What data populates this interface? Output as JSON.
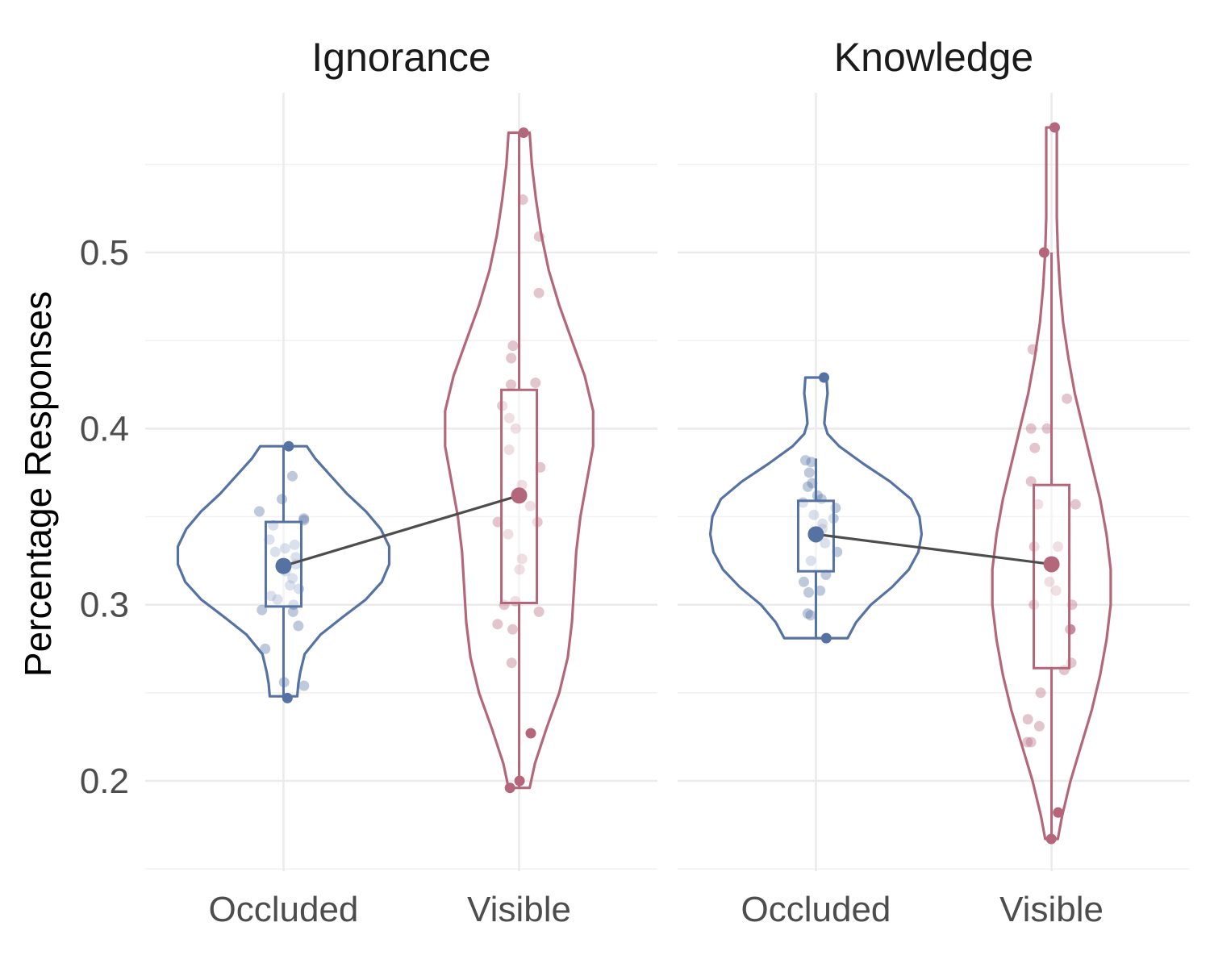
{
  "chart_data": {
    "type": "violin",
    "ylabel": "Percentage Responses",
    "xlabel": "",
    "ylim": [
      0.15,
      0.565
    ],
    "y_ticks": [
      0.2,
      0.3,
      0.4,
      0.5
    ],
    "y_tick_labels": [
      "0.2",
      "0.3",
      "0.4",
      "0.5"
    ],
    "grid": true,
    "colors": {
      "Occluded": "#5572a3",
      "Visible": "#b4677b",
      "mean_line": "#4d4d4d"
    },
    "categories": [
      "Occluded",
      "Visible"
    ],
    "facets": [
      {
        "title": "Ignorance",
        "groups": [
          {
            "category": "Occluded",
            "min": 0.248,
            "q1": 0.299,
            "median": 0.318,
            "q3": 0.347,
            "max": 0.39,
            "mean": 0.322,
            "outliers": [
              0.39,
              0.247
            ],
            "points": [
              0.353,
              0.349,
              0.345,
              0.337,
              0.334,
              0.332,
              0.33,
              0.327,
              0.323,
              0.319,
              0.315,
              0.311,
              0.309,
              0.305,
              0.303,
              0.3,
              0.296,
              0.297,
              0.373,
              0.36,
              0.348,
              0.288,
              0.275,
              0.256,
              0.254
            ],
            "density": [
              [
                0.248,
                0.13
              ],
              [
                0.255,
                0.14
              ],
              [
                0.262,
                0.16
              ],
              [
                0.272,
                0.2
              ],
              [
                0.283,
                0.35
              ],
              [
                0.293,
                0.56
              ],
              [
                0.303,
                0.78
              ],
              [
                0.313,
                0.93
              ],
              [
                0.323,
                1.0
              ],
              [
                0.333,
                1.0
              ],
              [
                0.343,
                0.92
              ],
              [
                0.353,
                0.78
              ],
              [
                0.363,
                0.6
              ],
              [
                0.373,
                0.45
              ],
              [
                0.383,
                0.3
              ],
              [
                0.39,
                0.22
              ]
            ]
          },
          {
            "category": "Visible",
            "min": 0.196,
            "q1": 0.301,
            "median": 0.36,
            "q3": 0.422,
            "max": 0.568,
            "mean": 0.362,
            "outliers": [
              0.568,
              0.227,
              0.2,
              0.196
            ],
            "points": [
              0.53,
              0.509,
              0.477,
              0.447,
              0.44,
              0.426,
              0.425,
              0.413,
              0.406,
              0.4,
              0.388,
              0.378,
              0.368,
              0.356,
              0.347,
              0.347,
              0.34,
              0.326,
              0.32,
              0.302,
              0.3,
              0.296,
              0.289,
              0.286,
              0.267
            ],
            "density": [
              [
                0.196,
                0.1
              ],
              [
                0.21,
                0.15
              ],
              [
                0.23,
                0.26
              ],
              [
                0.25,
                0.38
              ],
              [
                0.27,
                0.46
              ],
              [
                0.29,
                0.5
              ],
              [
                0.31,
                0.52
              ],
              [
                0.33,
                0.54
              ],
              [
                0.35,
                0.58
              ],
              [
                0.37,
                0.64
              ],
              [
                0.39,
                0.7
              ],
              [
                0.41,
                0.7
              ],
              [
                0.43,
                0.62
              ],
              [
                0.45,
                0.5
              ],
              [
                0.47,
                0.38
              ],
              [
                0.49,
                0.28
              ],
              [
                0.51,
                0.21
              ],
              [
                0.53,
                0.16
              ],
              [
                0.55,
                0.12
              ],
              [
                0.568,
                0.1
              ]
            ]
          }
        ]
      },
      {
        "title": "Knowledge",
        "groups": [
          {
            "category": "Occluded",
            "min": 0.281,
            "q1": 0.319,
            "median": 0.341,
            "q3": 0.359,
            "max": 0.383,
            "mean": 0.34,
            "outliers": [
              0.429,
              0.281
            ],
            "points": [
              0.381,
              0.382,
              0.375,
              0.369,
              0.367,
              0.362,
              0.36,
              0.358,
              0.355,
              0.351,
              0.349,
              0.346,
              0.343,
              0.341,
              0.338,
              0.335,
              0.33,
              0.325,
              0.317,
              0.313,
              0.308,
              0.307,
              0.295,
              0.294
            ],
            "density": [
              [
                0.281,
                0.3
              ],
              [
                0.29,
                0.38
              ],
              [
                0.3,
                0.52
              ],
              [
                0.31,
                0.72
              ],
              [
                0.32,
                0.88
              ],
              [
                0.33,
                0.97
              ],
              [
                0.34,
                1.0
              ],
              [
                0.35,
                0.98
              ],
              [
                0.36,
                0.9
              ],
              [
                0.37,
                0.7
              ],
              [
                0.38,
                0.45
              ],
              [
                0.39,
                0.22
              ],
              [
                0.397,
                0.11
              ],
              [
                0.403,
                0.08
              ],
              [
                0.41,
                0.09
              ],
              [
                0.42,
                0.11
              ],
              [
                0.429,
                0.1
              ]
            ]
          },
          {
            "category": "Visible",
            "min": 0.167,
            "q1": 0.264,
            "median": 0.3,
            "q3": 0.368,
            "max": 0.5,
            "mean": 0.323,
            "outliers": [
              0.571,
              0.5,
              0.182,
              0.167
            ],
            "points": [
              0.445,
              0.417,
              0.4,
              0.4,
              0.389,
              0.37,
              0.357,
              0.357,
              0.333,
              0.333,
              0.313,
              0.308,
              0.3,
              0.3,
              0.286,
              0.286,
              0.286,
              0.267,
              0.263,
              0.25,
              0.235,
              0.231,
              0.222,
              0.222
            ],
            "density": [
              [
                0.167,
                0.06
              ],
              [
                0.18,
                0.1
              ],
              [
                0.2,
                0.18
              ],
              [
                0.22,
                0.28
              ],
              [
                0.24,
                0.38
              ],
              [
                0.26,
                0.46
              ],
              [
                0.28,
                0.52
              ],
              [
                0.3,
                0.56
              ],
              [
                0.32,
                0.56
              ],
              [
                0.34,
                0.52
              ],
              [
                0.36,
                0.46
              ],
              [
                0.38,
                0.38
              ],
              [
                0.4,
                0.3
              ],
              [
                0.42,
                0.22
              ],
              [
                0.44,
                0.16
              ],
              [
                0.46,
                0.11
              ],
              [
                0.48,
                0.08
              ],
              [
                0.5,
                0.06
              ],
              [
                0.52,
                0.05
              ],
              [
                0.54,
                0.05
              ],
              [
                0.571,
                0.05
              ]
            ]
          }
        ]
      }
    ]
  }
}
